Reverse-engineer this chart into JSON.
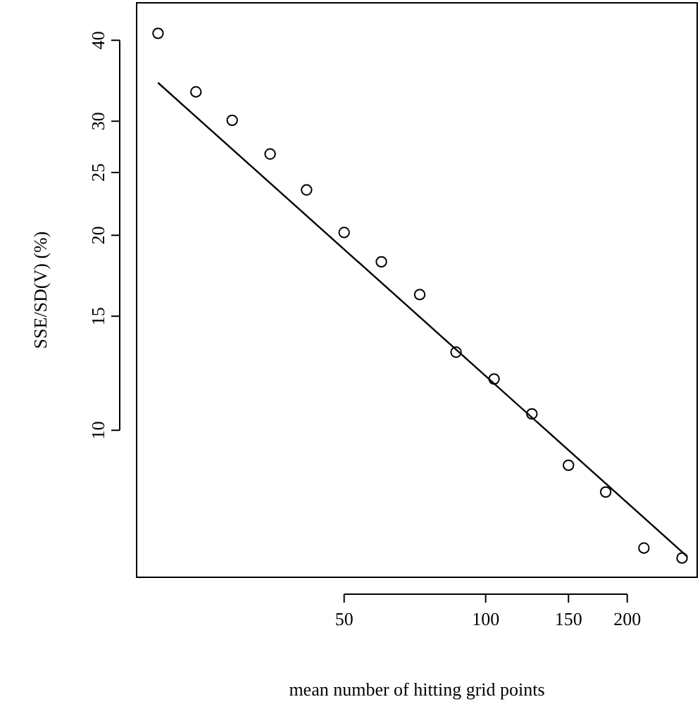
{
  "chart_data": {
    "type": "scatter",
    "xlabel": "mean number of hitting grid points",
    "ylabel": "SSE/SD(V) (%)",
    "log": "xy",
    "xlim": [
      18.1,
      281.7
    ],
    "ylim": [
      5.93,
      45.7
    ],
    "xticks": [
      50,
      100,
      150,
      200
    ],
    "yticks": [
      10,
      15,
      20,
      25,
      30,
      40
    ],
    "grid": false,
    "series": [
      {
        "marker": "circle",
        "color": "#000000",
        "x": [
          20.1,
          24.2,
          28.9,
          34.8,
          41.6,
          50,
          60,
          72.4,
          86.5,
          104.2,
          125.4,
          150,
          180,
          217,
          261.6
        ],
        "values": [
          41.0,
          33.3,
          30.1,
          26.7,
          23.5,
          20.2,
          18.2,
          16.2,
          13.2,
          12.0,
          10.6,
          8.83,
          8.03,
          6.58,
          6.35
        ]
      },
      {
        "type": "line",
        "color": "#000000",
        "x": [
          20.1,
          268.6
        ],
        "values": [
          34.4,
          6.38
        ]
      }
    ]
  }
}
